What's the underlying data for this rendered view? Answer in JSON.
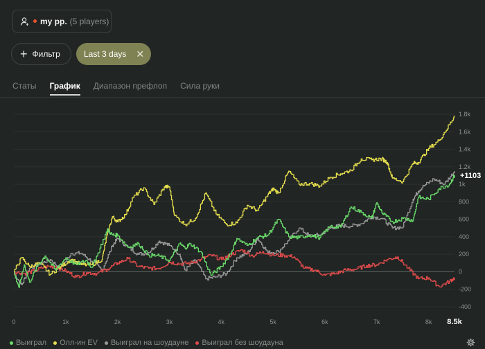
{
  "player_group": {
    "icon": "users-icon",
    "name": "my pp.",
    "count_label": "(5 players)",
    "status_color": "#e8532b"
  },
  "filters": {
    "add_label": "Фильтр",
    "active_chip": "Last 3 days"
  },
  "tabs": [
    {
      "label": "Статы",
      "active": false
    },
    {
      "label": "График",
      "active": true
    },
    {
      "label": "Диапазон префлоп",
      "active": false
    },
    {
      "label": "Сила руки",
      "active": false
    }
  ],
  "chart_data": {
    "type": "line",
    "title": "",
    "xlabel": "",
    "ylabel": "",
    "x_ticks": [
      "0",
      "1k",
      "2k",
      "3k",
      "4k",
      "5k",
      "6k",
      "7k",
      "8k"
    ],
    "x_end_label": "8.5k",
    "y_ticks": [
      "1.8k",
      "1.6k",
      "1.4k",
      "1.2k",
      "1k",
      "800",
      "600",
      "400",
      "200",
      "0",
      "-200",
      "-400"
    ],
    "xlim": [
      0,
      8500
    ],
    "ylim": [
      -400,
      1800
    ],
    "grid": true,
    "legend_position": "bottom-left",
    "end_value_label": "+1103",
    "series": [
      {
        "name": "Выиграл",
        "color": "#6bdc6b",
        "x": [
          0,
          100,
          200,
          300,
          450,
          600,
          800,
          1000,
          1200,
          1400,
          1500,
          1600,
          1800,
          1900,
          2000,
          2200,
          2400,
          2600,
          2800,
          3000,
          3200,
          3300,
          3400,
          3600,
          3800,
          4000,
          4200,
          4300,
          4500,
          4700,
          4900,
          5100,
          5300,
          5500,
          5700,
          5900,
          6100,
          6300,
          6500,
          6700,
          6900,
          7000,
          7100,
          7300,
          7500,
          7700,
          7800,
          8000,
          8200,
          8400,
          8500
        ],
        "y": [
          -10,
          -180,
          80,
          -120,
          60,
          180,
          20,
          160,
          80,
          130,
          50,
          180,
          480,
          420,
          420,
          280,
          320,
          190,
          180,
          130,
          320,
          270,
          320,
          230,
          -40,
          60,
          230,
          380,
          300,
          390,
          420,
          600,
          400,
          390,
          420,
          390,
          520,
          510,
          740,
          680,
          610,
          790,
          670,
          570,
          610,
          590,
          850,
          830,
          950,
          1000,
          1103
        ]
      },
      {
        "name": "Олл-ин EV",
        "color": "#e6df4e",
        "x": [
          0,
          150,
          300,
          500,
          700,
          900,
          1100,
          1300,
          1500,
          1700,
          1800,
          1900,
          2000,
          2150,
          2300,
          2500,
          2700,
          2900,
          3000,
          3100,
          3300,
          3500,
          3700,
          3900,
          4100,
          4300,
          4500,
          4700,
          4900,
          5000,
          5100,
          5300,
          5500,
          5700,
          5900,
          6100,
          6300,
          6500,
          6700,
          6900,
          7100,
          7200,
          7300,
          7500,
          7700,
          7800,
          8000,
          8200,
          8400,
          8500
        ],
        "y": [
          0,
          160,
          60,
          100,
          -30,
          60,
          140,
          80,
          80,
          140,
          430,
          630,
          570,
          650,
          850,
          960,
          770,
          970,
          970,
          640,
          540,
          610,
          900,
          660,
          540,
          560,
          760,
          700,
          880,
          950,
          900,
          1150,
          1000,
          1010,
          980,
          1080,
          1120,
          1160,
          1290,
          1280,
          1290,
          1250,
          1070,
          1030,
          1240,
          1250,
          1410,
          1500,
          1680,
          1780
        ]
      },
      {
        "name": "Выиграл на шоудауне",
        "color": "#9a9a9a",
        "x": [
          0,
          150,
          300,
          500,
          700,
          900,
          1100,
          1300,
          1500,
          1700,
          1900,
          2000,
          2200,
          2400,
          2600,
          2800,
          3000,
          3200,
          3300,
          3500,
          3700,
          3900,
          4100,
          4300,
          4500,
          4700,
          4900,
          5100,
          5300,
          5500,
          5700,
          5900,
          6100,
          6300,
          6500,
          6700,
          6900,
          7100,
          7300,
          7500,
          7700,
          7800,
          7900,
          8100,
          8300,
          8500
        ],
        "y": [
          -20,
          -150,
          40,
          90,
          140,
          30,
          210,
          210,
          120,
          20,
          300,
          380,
          280,
          200,
          220,
          350,
          300,
          200,
          20,
          130,
          -80,
          -60,
          -20,
          160,
          210,
          380,
          220,
          230,
          360,
          500,
          410,
          420,
          500,
          530,
          520,
          550,
          630,
          610,
          500,
          510,
          830,
          920,
          980,
          1060,
          1000,
          1150
        ]
      },
      {
        "name": "Выиграл без шоудауна",
        "color": "#e04b4b",
        "x": [
          0,
          200,
          400,
          600,
          800,
          1000,
          1200,
          1400,
          1600,
          1800,
          2000,
          2200,
          2400,
          2600,
          2800,
          3000,
          3200,
          3400,
          3600,
          3800,
          4000,
          4200,
          4400,
          4600,
          4800,
          5000,
          5200,
          5400,
          5600,
          5800,
          6000,
          6200,
          6400,
          6600,
          6800,
          7000,
          7200,
          7400,
          7600,
          7800,
          8000,
          8200,
          8400,
          8500
        ],
        "y": [
          0,
          -20,
          10,
          60,
          60,
          10,
          -60,
          -10,
          -20,
          30,
          100,
          150,
          60,
          40,
          40,
          110,
          90,
          100,
          140,
          190,
          140,
          200,
          250,
          180,
          230,
          190,
          190,
          170,
          40,
          20,
          -40,
          -20,
          20,
          30,
          70,
          80,
          140,
          170,
          40,
          -80,
          -70,
          -170,
          -110,
          -70
        ]
      }
    ]
  }
}
